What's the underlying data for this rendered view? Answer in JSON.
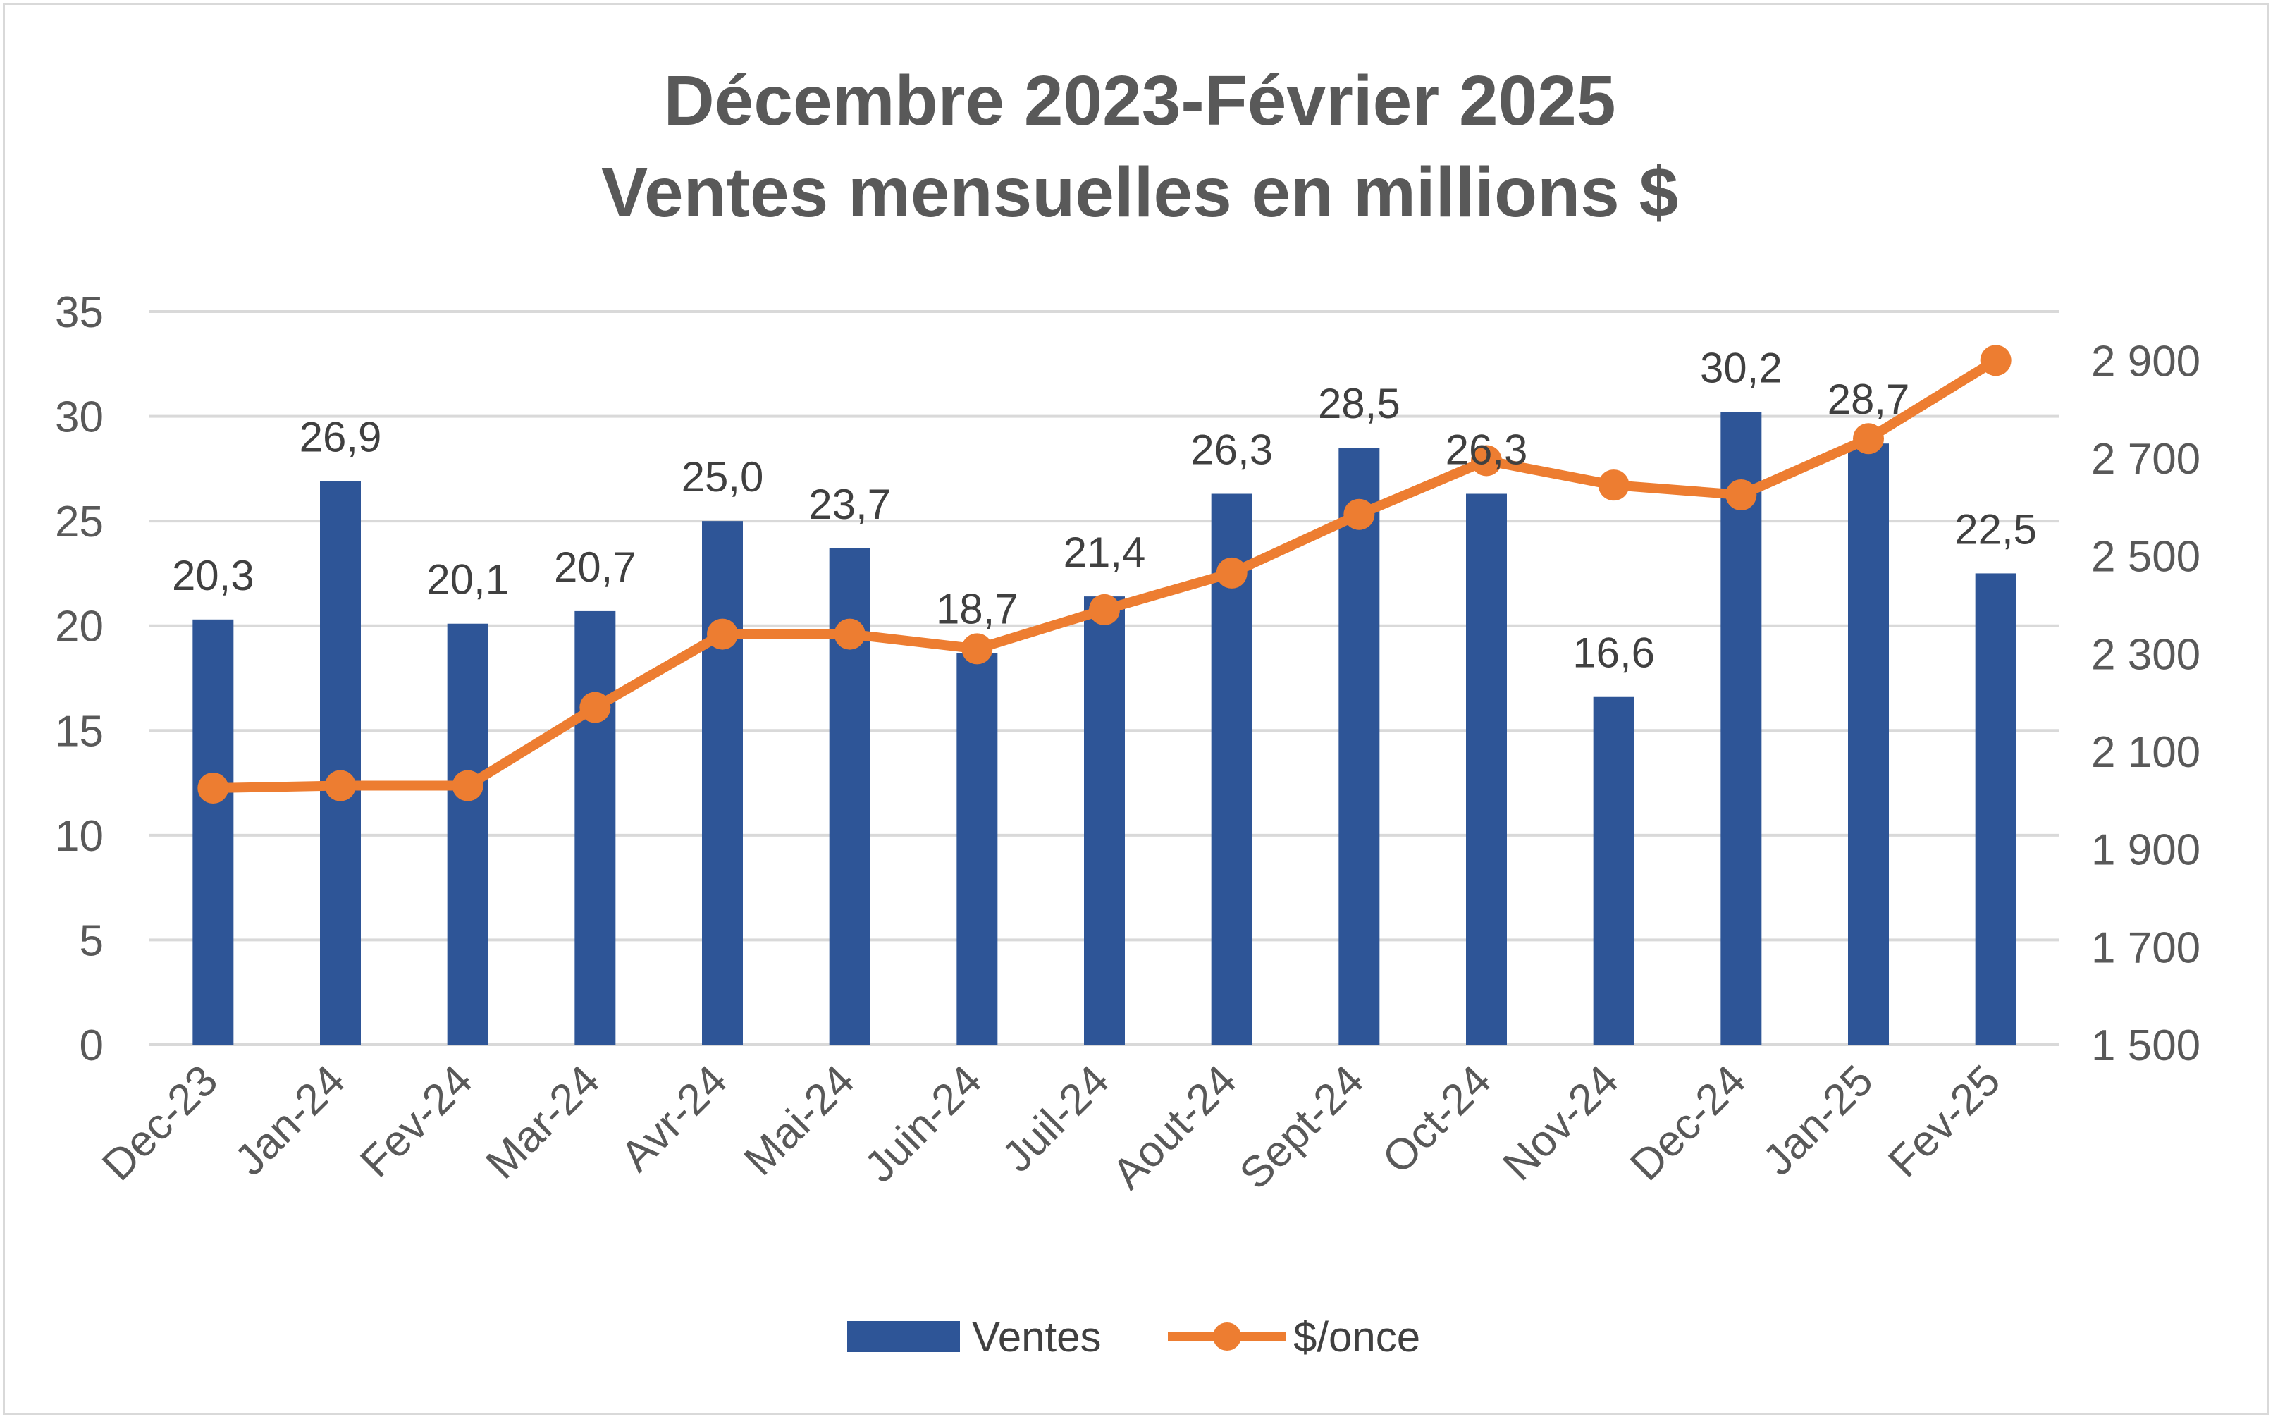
{
  "chart_data": {
    "type": "bar",
    "title_line1": "Décembre 2023-Février 2025",
    "title_line2": "Ventes mensuelles en millions $",
    "categories": [
      "Dec-23",
      "Jan-24",
      "Fev-24",
      "Mar-24",
      "Avr-24",
      "Mai-24",
      "Juin-24",
      "Juil-24",
      "Aout-24",
      "Sept-24",
      "Oct-24",
      "Nov-24",
      "Dec-24",
      "Jan-25",
      "Fev-25"
    ],
    "series": [
      {
        "name": "Ventes",
        "type": "bar",
        "axis": "left",
        "color": "#2e5597",
        "values": [
          20.3,
          26.9,
          20.1,
          20.7,
          25.0,
          23.7,
          18.7,
          21.4,
          26.3,
          28.5,
          26.3,
          16.6,
          30.2,
          28.7,
          22.5
        ],
        "labels": [
          "20,3",
          "26,9",
          "20,1",
          "20,7",
          "25,0",
          "23,7",
          "18,7",
          "21,4",
          "26,3",
          "28,5",
          "26,3",
          "16,6",
          "30,2",
          "28,7",
          "22,5"
        ]
      },
      {
        "name": "$/once",
        "type": "line",
        "axis": "right",
        "color": "#ed7d31",
        "values": [
          2025,
          2030,
          2030,
          2190,
          2340,
          2340,
          2310,
          2390,
          2465,
          2585,
          2695,
          2645,
          2625,
          2740,
          2900
        ]
      }
    ],
    "y_left": {
      "min": 0,
      "max": 35,
      "ticks": [
        "0",
        "5",
        "10",
        "15",
        "20",
        "25",
        "30",
        "35"
      ],
      "tick_values": [
        0,
        5,
        10,
        15,
        20,
        25,
        30,
        35
      ]
    },
    "y_right": {
      "min": 1500,
      "max": 3000,
      "ticks": [
        "1 500",
        "1 700",
        "1 900",
        "2 100",
        "2 300",
        "2 500",
        "2 700",
        "2 900"
      ],
      "tick_values": [
        1500,
        1700,
        1900,
        2100,
        2300,
        2500,
        2700,
        2900
      ]
    },
    "legend": {
      "position": "bottom",
      "items": [
        "Ventes",
        "$/once"
      ]
    },
    "grid": true
  }
}
